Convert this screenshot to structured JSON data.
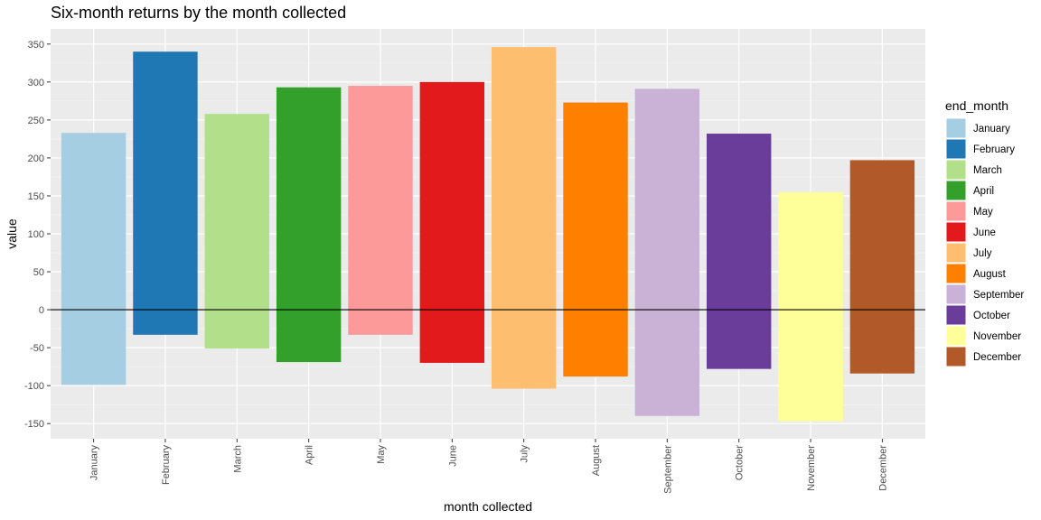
{
  "chart_data": {
    "type": "bar",
    "title": "Six-month returns by the month collected",
    "xlabel": "month collected",
    "ylabel": "value",
    "categories": [
      "January",
      "February",
      "March",
      "April",
      "May",
      "June",
      "July",
      "August",
      "September",
      "October",
      "November",
      "December"
    ],
    "series": [
      {
        "bar_top": 233,
        "bar_bottom": -99
      },
      {
        "bar_top": 340,
        "bar_bottom": -33
      },
      {
        "bar_top": 258,
        "bar_bottom": -51
      },
      {
        "bar_top": 293,
        "bar_bottom": -69
      },
      {
        "bar_top": 295,
        "bar_bottom": -33
      },
      {
        "bar_top": 300,
        "bar_bottom": -70
      },
      {
        "bar_top": 346,
        "bar_bottom": -104
      },
      {
        "bar_top": 273,
        "bar_bottom": -88
      },
      {
        "bar_top": 291,
        "bar_bottom": -140
      },
      {
        "bar_top": 232,
        "bar_bottom": -78
      },
      {
        "bar_top": 155,
        "bar_bottom": -147
      },
      {
        "bar_top": 197,
        "bar_bottom": -84
      }
    ],
    "colors": [
      "#A6CEE3",
      "#1F78B4",
      "#B2DF8A",
      "#33A02C",
      "#FB9A99",
      "#E31A1C",
      "#FDBF6F",
      "#FF7F00",
      "#CAB2D6",
      "#6A3D9A",
      "#FFFF99",
      "#B15928"
    ],
    "ylim": [
      -170,
      370
    ],
    "yticks": [
      350,
      300,
      250,
      200,
      150,
      100,
      50,
      0,
      -50,
      -100,
      -150
    ],
    "ytick_labels": [
      "350",
      "300",
      "250",
      "200",
      "150",
      "100",
      "50",
      "0",
      "-50",
      "-100",
      "-150"
    ],
    "reference_line": 0,
    "grid": true,
    "legend": {
      "title": "end_month",
      "position": "right",
      "labels": [
        "January",
        "February",
        "March",
        "April",
        "May",
        "June",
        "July",
        "August",
        "September",
        "October",
        "November",
        "December"
      ]
    }
  }
}
